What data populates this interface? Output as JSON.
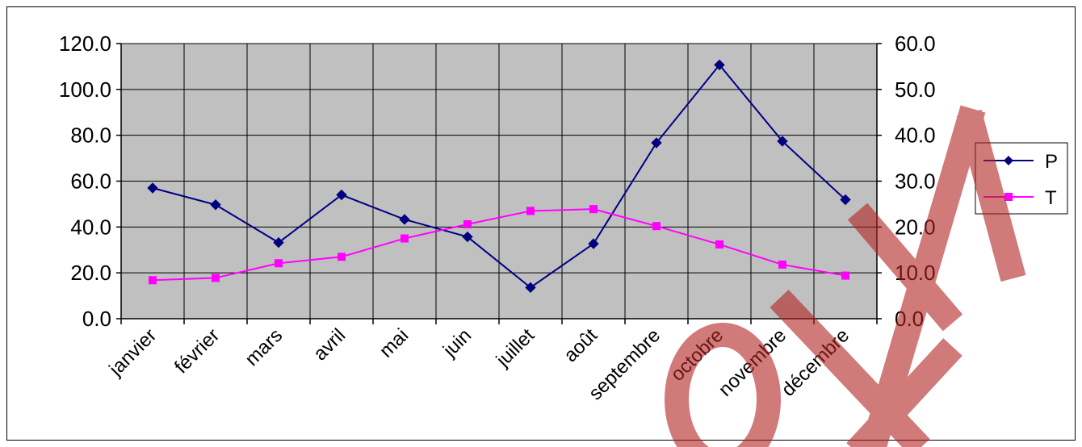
{
  "chart_data": {
    "type": "line",
    "categories": [
      "janvier",
      "février",
      "mars",
      "avril",
      "mai",
      "juin",
      "juillet",
      "août",
      "septembre",
      "octobre",
      "novembre",
      "décembre"
    ],
    "series": [
      {
        "name": "P",
        "axis": "left",
        "color": "#000080",
        "marker": "diamond",
        "values": [
          57.0,
          49.7,
          33.2,
          54.0,
          43.3,
          35.7,
          13.6,
          32.7,
          76.7,
          110.7,
          77.4,
          51.9
        ]
      },
      {
        "name": "T",
        "axis": "right",
        "color": "#FF00FF",
        "marker": "square",
        "values": [
          8.4,
          8.9,
          12.1,
          13.5,
          17.5,
          20.6,
          23.5,
          23.9,
          20.2,
          16.2,
          11.8,
          9.4
        ]
      }
    ],
    "y_left": {
      "min": 0,
      "max": 120,
      "step": 20,
      "ticks": [
        "0.0",
        "20.0",
        "40.0",
        "60.0",
        "80.0",
        "100.0",
        "120.0"
      ]
    },
    "y_right": {
      "min": 0,
      "max": 60,
      "step": 10,
      "ticks": [
        "0.0",
        "10.0",
        "20.0",
        "30.0",
        "40.0",
        "50.0",
        "60.0"
      ]
    },
    "grid": true,
    "plot_background": "#C0C0C0",
    "legend_position": "right",
    "watermark": {
      "text": "ONF",
      "color": "#B22222"
    }
  }
}
